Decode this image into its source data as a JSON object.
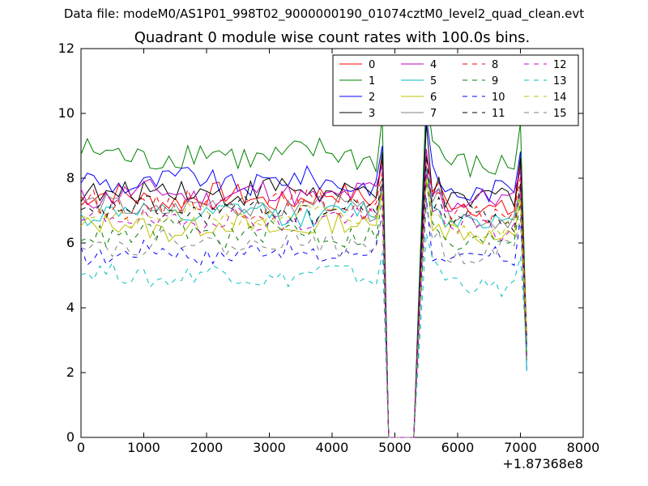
{
  "suptitle": "Data file: modeM0/AS1P01_998T02_9000000190_01074cztM0_level2_quad_clean.evt",
  "chart_data": {
    "type": "line",
    "title": "Quadrant 0 module wise count rates with 100.0s bins.",
    "xlabel": "",
    "ylabel": "",
    "x_offset_label": "+1.87368e8",
    "xlim": [
      0,
      8000
    ],
    "ylim": [
      0,
      12
    ],
    "xticks": [
      0,
      1000,
      2000,
      3000,
      4000,
      5000,
      6000,
      7000,
      8000
    ],
    "yticks": [
      0,
      2,
      4,
      6,
      8,
      10,
      12
    ],
    "grid": false,
    "legend": {
      "placement": "top-right",
      "columns": 4
    },
    "x_start": 0,
    "x_step": 100,
    "series": [
      {
        "name": "0",
        "color": "#ff0000",
        "dash": "solid",
        "base": 7.4,
        "amp": 0.35,
        "peak1": 8.6,
        "peak2": 8.7
      },
      {
        "name": "1",
        "color": "#008000",
        "dash": "solid",
        "base": 8.7,
        "amp": 0.45,
        "peak1": 9.9,
        "peak2": 10.6
      },
      {
        "name": "2",
        "color": "#0000ff",
        "dash": "solid",
        "base": 7.9,
        "amp": 0.35,
        "peak1": 9.0,
        "peak2": 9.9
      },
      {
        "name": "3",
        "color": "#000000",
        "dash": "solid",
        "base": 7.6,
        "amp": 0.4,
        "peak1": 8.8,
        "peak2": 9.7
      },
      {
        "name": "4",
        "color": "#bf00bf",
        "dash": "solid",
        "base": 7.5,
        "amp": 0.35,
        "peak1": 8.4,
        "peak2": 8.9
      },
      {
        "name": "5",
        "color": "#00bfbf",
        "dash": "solid",
        "base": 6.9,
        "amp": 0.3,
        "peak1": 7.7,
        "peak2": 8.3
      },
      {
        "name": "6",
        "color": "#bfbf00",
        "dash": "solid",
        "base": 6.5,
        "amp": 0.35,
        "peak1": 7.6,
        "peak2": 8.1
      },
      {
        "name": "7",
        "color": "#808080",
        "dash": "solid",
        "base": 7.1,
        "amp": 0.3,
        "peak1": 7.9,
        "peak2": 8.4
      },
      {
        "name": "8",
        "color": "#ff0000",
        "dash": "dashed",
        "base": 7.2,
        "amp": 0.35,
        "peak1": 8.2,
        "peak2": 8.7
      },
      {
        "name": "9",
        "color": "#008000",
        "dash": "dashed",
        "base": 6.3,
        "amp": 0.35,
        "peak1": 7.4,
        "peak2": 7.9
      },
      {
        "name": "10",
        "color": "#0000ff",
        "dash": "dashed",
        "base": 5.7,
        "amp": 0.3,
        "peak1": 6.9,
        "peak2": 7.4
      },
      {
        "name": "11",
        "color": "#000000",
        "dash": "dashed",
        "base": 7.0,
        "amp": 0.35,
        "peak1": 8.0,
        "peak2": 8.7
      },
      {
        "name": "12",
        "color": "#bf00bf",
        "dash": "dashed",
        "base": 6.7,
        "amp": 0.35,
        "peak1": 7.7,
        "peak2": 8.2
      },
      {
        "name": "13",
        "color": "#00bfbf",
        "dash": "dashed",
        "base": 5.0,
        "amp": 0.3,
        "peak1": 5.7,
        "peak2": 6.3
      },
      {
        "name": "14",
        "color": "#bfbf00",
        "dash": "dashed",
        "base": 6.8,
        "amp": 0.3,
        "peak1": 7.6,
        "peak2": 8.0
      },
      {
        "name": "15",
        "color": "#808080",
        "dash": "dashed",
        "base": 6.0,
        "amp": 0.3,
        "peak1": 6.9,
        "peak2": 7.2
      }
    ]
  }
}
